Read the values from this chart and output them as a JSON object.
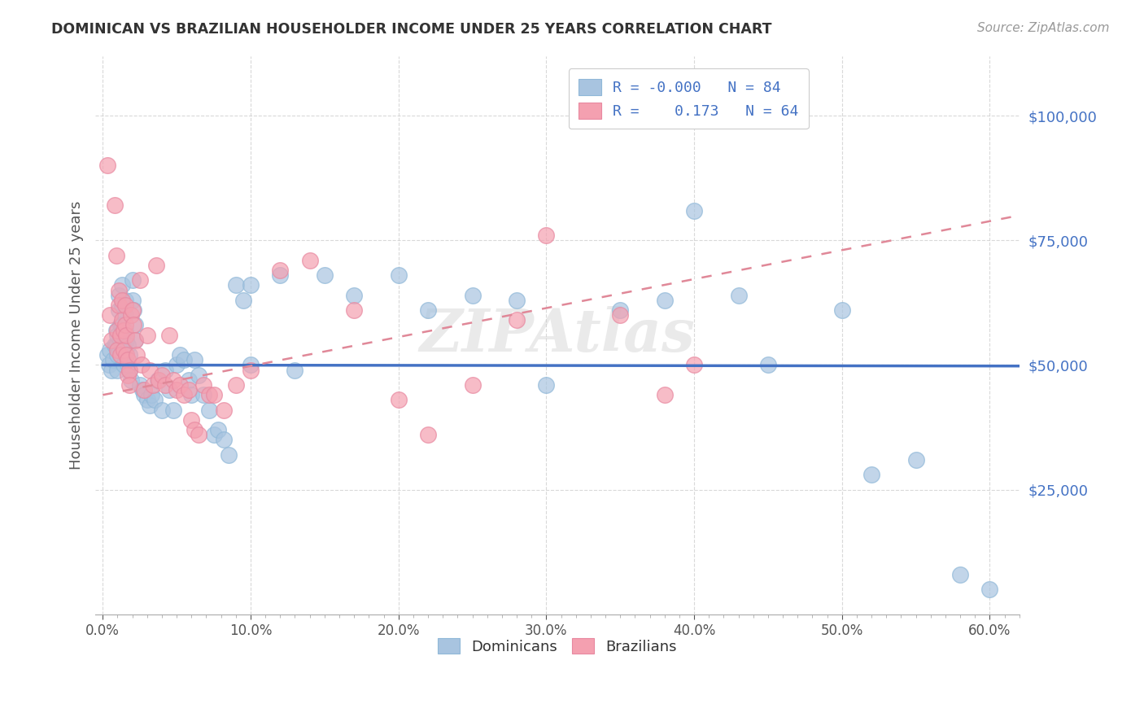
{
  "title": "DOMINICAN VS BRAZILIAN HOUSEHOLDER INCOME UNDER 25 YEARS CORRELATION CHART",
  "source": "Source: ZipAtlas.com",
  "ylabel": "Householder Income Under 25 years",
  "xlabel_ticks": [
    "0.0%",
    "",
    "",
    "",
    "",
    "",
    "",
    "",
    "",
    "10.0%",
    "",
    "",
    "",
    "",
    "",
    "",
    "",
    "",
    "",
    "20.0%",
    "",
    "",
    "",
    "",
    "",
    "",
    "",
    "",
    "",
    "30.0%",
    "",
    "",
    "",
    "",
    "",
    "",
    "",
    "",
    "",
    "40.0%",
    "",
    "",
    "",
    "",
    "",
    "",
    "",
    "",
    "",
    "50.0%",
    "",
    "",
    "",
    "",
    "",
    "",
    "",
    "",
    "",
    "60.0%"
  ],
  "xlabel_major_ticks": [
    0.0,
    0.1,
    0.2,
    0.3,
    0.4,
    0.5,
    0.6
  ],
  "xlabel_major_labels": [
    "0.0%",
    "10.0%",
    "20.0%",
    "30.0%",
    "40.0%",
    "50.0%",
    "60.0%"
  ],
  "ytick_labels": [
    "$25,000",
    "$50,000",
    "$75,000",
    "$100,000"
  ],
  "ytick_vals": [
    25000,
    50000,
    75000,
    100000
  ],
  "ylim": [
    0,
    112000
  ],
  "xlim": [
    -0.005,
    0.62
  ],
  "dominicans_color": "#a8c4e0",
  "brazilians_color": "#f4a0b0",
  "dominicans_R": "-0.000",
  "dominicans_N": 84,
  "brazilians_R": "0.173",
  "brazilians_N": 64,
  "watermark": "ZIPAtlas",
  "dominicans_x": [
    0.003,
    0.004,
    0.005,
    0.006,
    0.007,
    0.008,
    0.009,
    0.009,
    0.01,
    0.01,
    0.01,
    0.011,
    0.011,
    0.012,
    0.012,
    0.012,
    0.013,
    0.013,
    0.013,
    0.014,
    0.014,
    0.015,
    0.015,
    0.015,
    0.016,
    0.016,
    0.017,
    0.017,
    0.018,
    0.018,
    0.019,
    0.02,
    0.02,
    0.021,
    0.022,
    0.022,
    0.025,
    0.027,
    0.028,
    0.03,
    0.032,
    0.033,
    0.035,
    0.037,
    0.04,
    0.042,
    0.045,
    0.048,
    0.05,
    0.052,
    0.055,
    0.058,
    0.06,
    0.062,
    0.065,
    0.068,
    0.072,
    0.075,
    0.078,
    0.082,
    0.085,
    0.09,
    0.095,
    0.1,
    0.12,
    0.13,
    0.15,
    0.17,
    0.2,
    0.22,
    0.25,
    0.28,
    0.3,
    0.35,
    0.38,
    0.4,
    0.43,
    0.5,
    0.52,
    0.55,
    0.58,
    0.6,
    0.1,
    0.45
  ],
  "dominicans_y": [
    52000,
    50000,
    53000,
    49000,
    51000,
    54000,
    57000,
    54000,
    56000,
    52000,
    49000,
    64000,
    61000,
    58000,
    55000,
    52000,
    66000,
    62000,
    58000,
    54000,
    50000,
    63000,
    60000,
    57000,
    55000,
    52000,
    54000,
    50000,
    52000,
    49000,
    47000,
    67000,
    63000,
    61000,
    58000,
    55000,
    46000,
    45000,
    44000,
    43000,
    42000,
    44000,
    43000,
    47000,
    41000,
    49000,
    45000,
    41000,
    50000,
    52000,
    51000,
    47000,
    44000,
    51000,
    48000,
    44000,
    41000,
    36000,
    37000,
    35000,
    32000,
    66000,
    63000,
    66000,
    68000,
    49000,
    68000,
    64000,
    68000,
    61000,
    64000,
    63000,
    46000,
    61000,
    63000,
    81000,
    64000,
    61000,
    28000,
    31000,
    8000,
    5000,
    50000,
    50000
  ],
  "brazilians_x": [
    0.003,
    0.005,
    0.006,
    0.008,
    0.009,
    0.01,
    0.01,
    0.011,
    0.011,
    0.012,
    0.012,
    0.013,
    0.013,
    0.014,
    0.014,
    0.015,
    0.015,
    0.016,
    0.016,
    0.017,
    0.017,
    0.018,
    0.018,
    0.019,
    0.02,
    0.021,
    0.022,
    0.023,
    0.025,
    0.026,
    0.028,
    0.03,
    0.032,
    0.034,
    0.036,
    0.038,
    0.04,
    0.042,
    0.045,
    0.048,
    0.05,
    0.052,
    0.055,
    0.058,
    0.06,
    0.062,
    0.065,
    0.068,
    0.072,
    0.075,
    0.082,
    0.09,
    0.1,
    0.12,
    0.14,
    0.17,
    0.2,
    0.22,
    0.25,
    0.28,
    0.3,
    0.35,
    0.38,
    0.4
  ],
  "brazilians_y": [
    90000,
    60000,
    55000,
    82000,
    72000,
    57000,
    53000,
    65000,
    62000,
    56000,
    52000,
    63000,
    59000,
    57000,
    53000,
    62000,
    58000,
    56000,
    52000,
    51000,
    48000,
    49000,
    46000,
    60000,
    61000,
    58000,
    55000,
    52000,
    67000,
    50000,
    45000,
    56000,
    49000,
    46000,
    70000,
    47000,
    48000,
    46000,
    56000,
    47000,
    45000,
    46000,
    44000,
    45000,
    39000,
    37000,
    36000,
    46000,
    44000,
    44000,
    41000,
    46000,
    49000,
    69000,
    71000,
    61000,
    43000,
    36000,
    46000,
    59000,
    76000,
    60000,
    44000,
    50000
  ],
  "dom_trendline_x": [
    0.0,
    0.62
  ],
  "dom_trendline_y": [
    50000,
    49800
  ],
  "braz_trendline_x": [
    0.0,
    0.62
  ],
  "braz_trendline_y": [
    44000,
    80000
  ],
  "background_color": "#ffffff",
  "grid_color": "#d0d0d0",
  "title_color": "#333333",
  "axis_label_color": "#555555",
  "ytick_color": "#4472c4",
  "xtick_color": "#555555"
}
